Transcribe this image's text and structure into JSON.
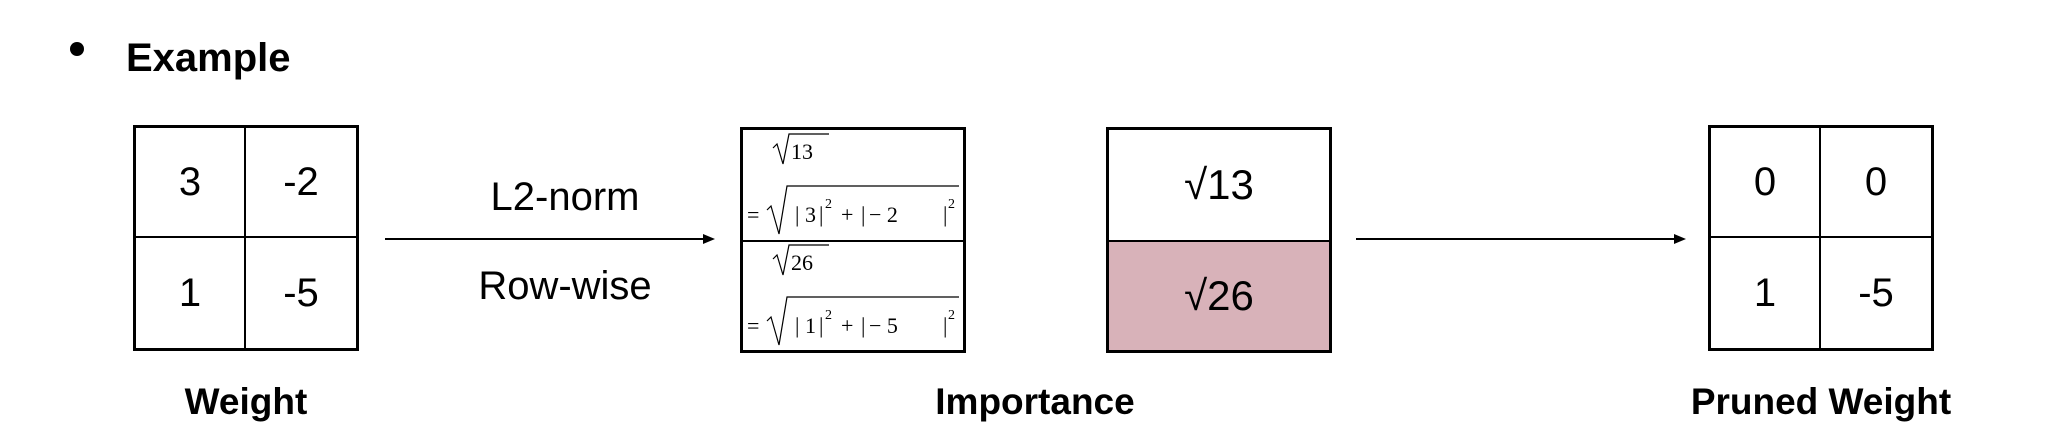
{
  "heading": "Example",
  "weight": {
    "caption": "Weight",
    "cells": [
      "3",
      "-2",
      "1",
      "-5"
    ]
  },
  "arrow1": {
    "label_top": "L2-norm",
    "label_bottom": "Row-wise"
  },
  "formulas": [
    {
      "result": "13",
      "terms": [
        "3",
        "− 2"
      ],
      "exponent": "2"
    },
    {
      "result": "26",
      "terms": [
        "1",
        "− 5"
      ],
      "exponent": "2"
    }
  ],
  "importance": {
    "caption": "Importance",
    "values": [
      "√13",
      "√26"
    ],
    "highlight_color": "#d8b2b9"
  },
  "pruned": {
    "caption": "Pruned Weight",
    "cells": [
      "0",
      "0",
      "1",
      "-5"
    ]
  }
}
